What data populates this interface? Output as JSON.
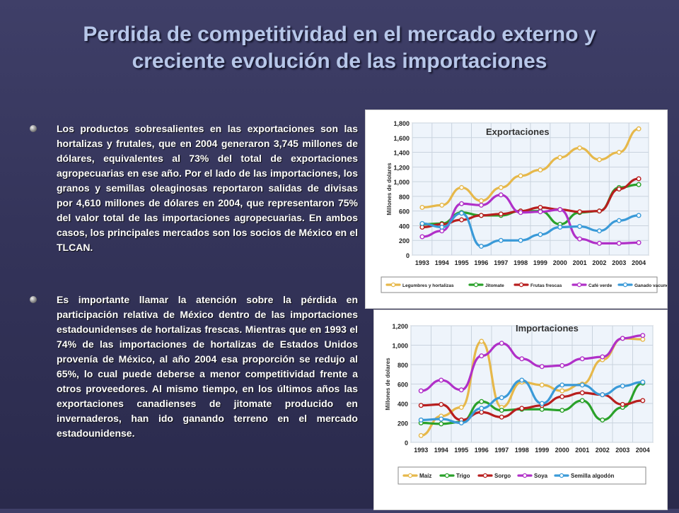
{
  "title": {
    "line1": "Perdida de competitividad en el mercado externo y",
    "line2": "creciente evolución de las importaciones"
  },
  "bullets": [
    "Los productos sobresalientes en las exportaciones son las hortalizas y frutales, que en 2004 generaron 3,745 millones de dólares, equivalentes al 73% del total de exportaciones agropecuarias en ese año. Por el lado de las importaciones, los granos y semillas oleaginosas reportaron salidas de divisas por 4,610 millones de dólares en 2004, que representaron 75% del valor total de las importaciones agropecuarias. En ambos casos, los principales mercados son los socios de México en el TLCAN.",
    "Es importante llamar la atención sobre la pérdida en participación relativa de México dentro de las importaciones estadounidenses de hortalizas frescas. Mientras que en 1993 el 74% de las importaciones de hortalizas de Estados Unidos provenía de México, al año 2004 esa proporción se redujo al 65%, lo cual puede deberse a menor competitividad frente a otros proveedores. Al mismo tiempo, en los últimos años las exportaciones canadienses de jitomate producido en invernaderos, han ido ganando terreno en el mercado estadounidense."
  ],
  "chart_data": [
    {
      "type": "line",
      "title": "Exportaciones",
      "ylabel": "Millones de dolares",
      "xlabel": "",
      "ylim": [
        0,
        1800
      ],
      "yticks": [
        "0",
        "200",
        "400",
        "600",
        "800",
        "1,000",
        "1,200",
        "1,400",
        "1,600",
        "1,800"
      ],
      "categories": [
        "1993",
        "1994",
        "1995",
        "1996",
        "1997",
        "1998",
        "1999",
        "2000",
        "2001",
        "2002",
        "2003",
        "2004"
      ],
      "grid": true,
      "legend": "bottom",
      "series": [
        {
          "name": "Legumbres y hortalizas",
          "color": "#e6b84a",
          "values": [
            650,
            680,
            920,
            740,
            920,
            1080,
            1160,
            1330,
            1460,
            1300,
            1400,
            1720
          ]
        },
        {
          "name": "Jitomate",
          "color": "#2aa12a",
          "values": [
            420,
            430,
            580,
            540,
            540,
            600,
            600,
            420,
            580,
            600,
            920,
            960
          ]
        },
        {
          "name": "Frutas frescas",
          "color": "#b81e1e",
          "values": [
            380,
            420,
            480,
            540,
            560,
            600,
            650,
            620,
            590,
            600,
            900,
            1040
          ]
        },
        {
          "name": "Café verde",
          "color": "#b030c8",
          "values": [
            250,
            330,
            700,
            680,
            820,
            580,
            590,
            620,
            220,
            160,
            160,
            170
          ]
        },
        {
          "name": "Ganado vacuno",
          "color": "#3a9ad8",
          "values": [
            430,
            380,
            570,
            120,
            200,
            200,
            280,
            380,
            390,
            330,
            470,
            540
          ]
        }
      ]
    },
    {
      "type": "line",
      "title": "Importaciones",
      "ylabel": "Millones de dolares",
      "xlabel": "",
      "ylim": [
        0,
        1200
      ],
      "yticks": [
        "0",
        "200",
        "400",
        "600",
        "800",
        "1,000",
        "1,200"
      ],
      "categories": [
        "1993",
        "1994",
        "1995",
        "1996",
        "1997",
        "1998",
        "1999",
        "2000",
        "2001",
        "2002",
        "2003",
        "2004"
      ],
      "grid": true,
      "legend": "bottom",
      "series": [
        {
          "name": "Maíz",
          "color": "#e6b84a",
          "values": [
            70,
            270,
            360,
            1040,
            360,
            620,
            590,
            530,
            600,
            850,
            1070,
            1060
          ]
        },
        {
          "name": "Trigo",
          "color": "#2aa12a",
          "values": [
            200,
            190,
            210,
            420,
            330,
            340,
            340,
            330,
            430,
            230,
            360,
            610
          ]
        },
        {
          "name": "Sorgo",
          "color": "#b81e1e",
          "values": [
            380,
            390,
            230,
            310,
            260,
            350,
            380,
            470,
            510,
            490,
            390,
            430
          ]
        },
        {
          "name": "Soya",
          "color": "#b030c8",
          "values": [
            530,
            640,
            540,
            890,
            1020,
            860,
            780,
            790,
            860,
            880,
            1070,
            1100
          ]
        },
        {
          "name": "Semilla algodón",
          "color": "#3a9ad8",
          "values": [
            230,
            240,
            200,
            350,
            460,
            640,
            400,
            590,
            590,
            490,
            580,
            620
          ]
        }
      ]
    }
  ]
}
